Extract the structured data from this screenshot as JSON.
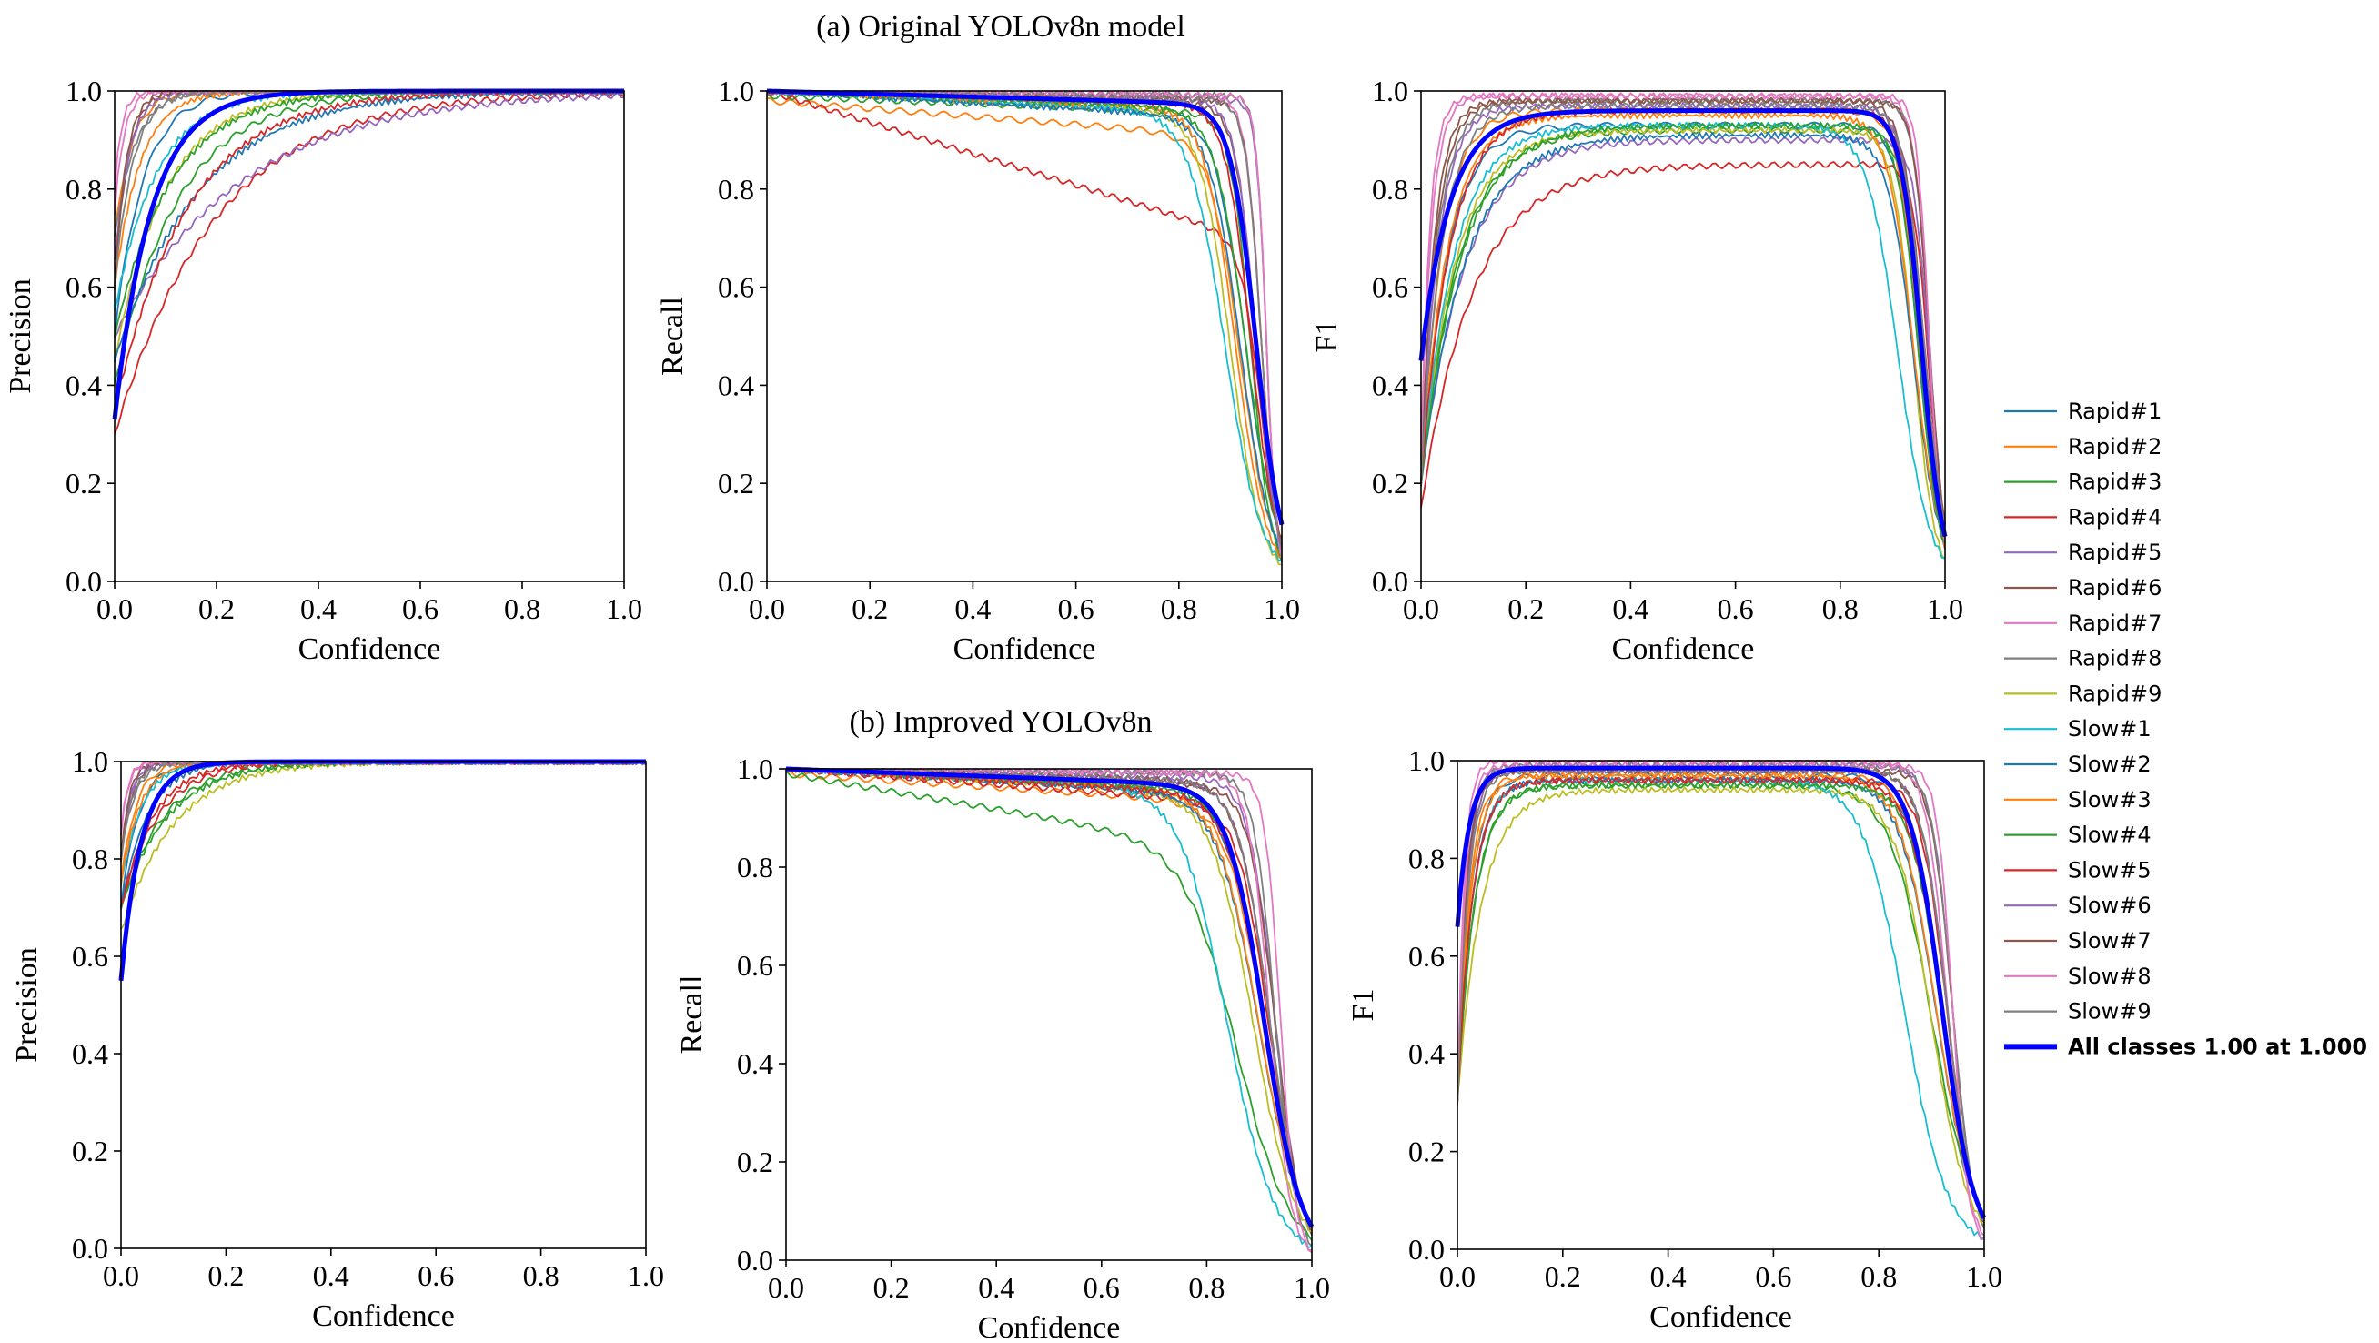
{
  "figure": {
    "top_title": "(a) Original YOLOv8n model",
    "bottom_title": "(b) Improved YOLOv8n"
  },
  "legend": [
    {
      "label": "Rapid#1",
      "color": "#1f77b4"
    },
    {
      "label": "Rapid#2",
      "color": "#ff7f0e"
    },
    {
      "label": "Rapid#3",
      "color": "#2ca02c"
    },
    {
      "label": "Rapid#4",
      "color": "#d62728"
    },
    {
      "label": "Rapid#5",
      "color": "#9467bd"
    },
    {
      "label": "Rapid#6",
      "color": "#8c564b"
    },
    {
      "label": "Rapid#7",
      "color": "#e377c2"
    },
    {
      "label": "Rapid#8",
      "color": "#7f7f7f"
    },
    {
      "label": "Rapid#9",
      "color": "#bcbd22"
    },
    {
      "label": "Slow#1",
      "color": "#17becf"
    },
    {
      "label": "Slow#2",
      "color": "#1f77b4"
    },
    {
      "label": "Slow#3",
      "color": "#ff7f0e"
    },
    {
      "label": "Slow#4",
      "color": "#2ca02c"
    },
    {
      "label": "Slow#5",
      "color": "#d62728"
    },
    {
      "label": "Slow#6",
      "color": "#9467bd"
    },
    {
      "label": "Slow#7",
      "color": "#8c564b"
    },
    {
      "label": "Slow#8",
      "color": "#e377c2"
    },
    {
      "label": "Slow#9",
      "color": "#7f7f7f"
    },
    {
      "label": "All  classes 1.00 at 1.000",
      "color": "#0000ff",
      "bold": true
    }
  ],
  "chart_data": [
    {
      "id": "a-precision",
      "type": "line",
      "row": "a",
      "kind": "precision",
      "xlabel": "Confidence",
      "ylabel": "Precision",
      "xlim": [
        0,
        1
      ],
      "ylim": [
        0,
        1
      ],
      "xticks": [
        "0.0",
        "0.2",
        "0.4",
        "0.6",
        "0.8",
        "1.0"
      ],
      "yticks": [
        "0.0",
        "0.2",
        "0.4",
        "0.6",
        "0.8",
        "1.0"
      ],
      "series": [
        {
          "name": "Rapid#1",
          "start": 0.5,
          "k": 18
        },
        {
          "name": "Rapid#2",
          "start": 0.7,
          "k": 30
        },
        {
          "name": "Rapid#3",
          "start": 0.4,
          "k": 8
        },
        {
          "name": "Rapid#4",
          "start": 0.3,
          "k": 5
        },
        {
          "name": "Rapid#5",
          "start": 0.5,
          "k": 4
        },
        {
          "name": "Rapid#6",
          "start": 0.6,
          "k": 40
        },
        {
          "name": "Rapid#7",
          "start": 0.8,
          "k": 70
        },
        {
          "name": "Rapid#8",
          "start": 0.7,
          "k": 25
        },
        {
          "name": "Rapid#9",
          "start": 0.45,
          "k": 10
        },
        {
          "name": "Slow#1",
          "start": 0.55,
          "k": 12
        },
        {
          "name": "Slow#2",
          "start": 0.45,
          "k": 6
        },
        {
          "name": "Slow#3",
          "start": 0.6,
          "k": 20
        },
        {
          "name": "Slow#4",
          "start": 0.5,
          "k": 9
        },
        {
          "name": "Slow#5",
          "start": 0.35,
          "k": 7
        },
        {
          "name": "Slow#6",
          "start": 0.65,
          "k": 35
        },
        {
          "name": "Slow#7",
          "start": 0.6,
          "k": 45
        },
        {
          "name": "Slow#8",
          "start": 0.75,
          "k": 55
        },
        {
          "name": "Slow#9",
          "start": 0.6,
          "k": 28
        },
        {
          "name": "All classes",
          "start": 0.33,
          "k": 14
        }
      ]
    },
    {
      "id": "a-recall",
      "type": "line",
      "row": "a",
      "kind": "recall",
      "xlabel": "Confidence",
      "ylabel": "Recall",
      "xlim": [
        0,
        1
      ],
      "ylim": [
        0,
        1
      ],
      "xticks": [
        "0.0",
        "0.2",
        "0.4",
        "0.6",
        "0.8",
        "1.0"
      ],
      "yticks": [
        "0.0",
        "0.2",
        "0.4",
        "0.6",
        "0.8",
        "1.0"
      ],
      "series": [
        {
          "name": "Rapid#1",
          "start": 1.0,
          "c": 0.93,
          "w": 0.03,
          "slope": 0.05
        },
        {
          "name": "Rapid#2",
          "start": 0.98,
          "c": 0.92,
          "w": 0.03,
          "slope": 0.08
        },
        {
          "name": "Rapid#3",
          "start": 0.99,
          "c": 0.94,
          "w": 0.02,
          "slope": 0.04
        },
        {
          "name": "Rapid#4",
          "start": 1.0,
          "c": 0.96,
          "w": 0.02,
          "slope": 0.32
        },
        {
          "name": "Rapid#5",
          "start": 1.0,
          "c": 0.97,
          "w": 0.01,
          "slope": 0.02
        },
        {
          "name": "Rapid#6",
          "start": 1.0,
          "c": 0.95,
          "w": 0.02,
          "slope": 0.03
        },
        {
          "name": "Rapid#7",
          "start": 1.0,
          "c": 0.96,
          "w": 0.015,
          "slope": 0.01
        },
        {
          "name": "Rapid#8",
          "start": 1.0,
          "c": 0.97,
          "w": 0.01,
          "slope": 0.01
        },
        {
          "name": "Rapid#9",
          "start": 1.0,
          "c": 0.9,
          "w": 0.03,
          "slope": 0.05
        },
        {
          "name": "Slow#1",
          "start": 1.0,
          "c": 0.89,
          "w": 0.035,
          "slope": 0.05
        },
        {
          "name": "Slow#2",
          "start": 1.0,
          "c": 0.92,
          "w": 0.03,
          "slope": 0.06
        },
        {
          "name": "Slow#3",
          "start": 1.0,
          "c": 0.91,
          "w": 0.03,
          "slope": 0.04
        },
        {
          "name": "Slow#4",
          "start": 1.0,
          "c": 0.93,
          "w": 0.03,
          "slope": 0.04
        },
        {
          "name": "Slow#5",
          "start": 1.0,
          "c": 0.94,
          "w": 0.025,
          "slope": 0.03
        },
        {
          "name": "Slow#6",
          "start": 1.0,
          "c": 0.95,
          "w": 0.02,
          "slope": 0.02
        },
        {
          "name": "Slow#7",
          "start": 1.0,
          "c": 0.96,
          "w": 0.015,
          "slope": 0.02
        },
        {
          "name": "Slow#8",
          "start": 1.0,
          "c": 0.97,
          "w": 0.01,
          "slope": 0.01
        },
        {
          "name": "Slow#9",
          "start": 1.0,
          "c": 0.96,
          "w": 0.015,
          "slope": 0.02
        },
        {
          "name": "All classes",
          "start": 1.0,
          "c": 0.95,
          "w": 0.025,
          "slope": 0.03
        }
      ]
    },
    {
      "id": "a-f1",
      "type": "line",
      "row": "a",
      "kind": "f1",
      "xlabel": "Confidence",
      "ylabel": "F1",
      "xlim": [
        0,
        1
      ],
      "ylim": [
        0,
        1
      ],
      "xticks": [
        "0.0",
        "0.2",
        "0.4",
        "0.6",
        "0.8",
        "1.0"
      ],
      "yticks": [
        "0.0",
        "0.2",
        "0.4",
        "0.6",
        "0.8",
        "1.0"
      ],
      "series": [
        {
          "name": "Rapid#1",
          "start": 0.2,
          "peak": 0.93,
          "k": 20,
          "c": 0.95,
          "w": 0.02
        },
        {
          "name": "Rapid#2",
          "start": 0.2,
          "peak": 0.96,
          "k": 25,
          "c": 0.95,
          "w": 0.02
        },
        {
          "name": "Rapid#3",
          "start": 0.2,
          "peak": 0.92,
          "k": 14,
          "c": 0.96,
          "w": 0.02
        },
        {
          "name": "Rapid#4",
          "start": 0.15,
          "peak": 0.85,
          "k": 10,
          "c": 0.97,
          "w": 0.015
        },
        {
          "name": "Rapid#5",
          "start": 0.2,
          "peak": 0.9,
          "k": 12,
          "c": 0.97,
          "w": 0.015
        },
        {
          "name": "Rapid#6",
          "start": 0.2,
          "peak": 0.98,
          "k": 35,
          "c": 0.96,
          "w": 0.02
        },
        {
          "name": "Rapid#7",
          "start": 0.25,
          "peak": 0.99,
          "k": 60,
          "c": 0.97,
          "w": 0.015
        },
        {
          "name": "Rapid#8",
          "start": 0.25,
          "peak": 0.98,
          "k": 30,
          "c": 0.97,
          "w": 0.015
        },
        {
          "name": "Rapid#9",
          "start": 0.2,
          "peak": 0.92,
          "k": 15,
          "c": 0.94,
          "w": 0.02
        },
        {
          "name": "Slow#1",
          "start": 0.2,
          "peak": 0.93,
          "k": 16,
          "c": 0.91,
          "w": 0.03
        },
        {
          "name": "Slow#2",
          "start": 0.2,
          "peak": 0.91,
          "k": 12,
          "c": 0.94,
          "w": 0.025
        },
        {
          "name": "Slow#3",
          "start": 0.2,
          "peak": 0.95,
          "k": 20,
          "c": 0.94,
          "w": 0.025
        },
        {
          "name": "Slow#4",
          "start": 0.2,
          "peak": 0.93,
          "k": 13,
          "c": 0.95,
          "w": 0.02
        },
        {
          "name": "Slow#5",
          "start": 0.2,
          "peak": 0.96,
          "k": 18,
          "c": 0.96,
          "w": 0.02
        },
        {
          "name": "Slow#6",
          "start": 0.2,
          "peak": 0.97,
          "k": 30,
          "c": 0.96,
          "w": 0.02
        },
        {
          "name": "Slow#7",
          "start": 0.2,
          "peak": 0.98,
          "k": 40,
          "c": 0.97,
          "w": 0.015
        },
        {
          "name": "Slow#8",
          "start": 0.25,
          "peak": 0.99,
          "k": 50,
          "c": 0.97,
          "w": 0.012
        },
        {
          "name": "Slow#9",
          "start": 0.2,
          "peak": 0.97,
          "k": 25,
          "c": 0.96,
          "w": 0.02
        },
        {
          "name": "All classes",
          "start": 0.45,
          "peak": 0.96,
          "k": 18,
          "c": 0.955,
          "w": 0.02
        }
      ]
    },
    {
      "id": "b-precision",
      "type": "line",
      "row": "b",
      "kind": "precision",
      "xlabel": "Confidence",
      "ylabel": "Precision",
      "xlim": [
        0,
        1
      ],
      "ylim": [
        0,
        1
      ],
      "xticks": [
        "0.0",
        "0.2",
        "0.4",
        "0.6",
        "0.8",
        "1.0"
      ],
      "yticks": [
        "0.0",
        "0.2",
        "0.4",
        "0.6",
        "0.8",
        "1.0"
      ],
      "series": [
        {
          "name": "Rapid#1",
          "start": 0.7,
          "k": 30
        },
        {
          "name": "Rapid#2",
          "start": 0.75,
          "k": 35
        },
        {
          "name": "Rapid#3",
          "start": 0.7,
          "k": 12
        },
        {
          "name": "Rapid#4",
          "start": 0.7,
          "k": 14
        },
        {
          "name": "Rapid#5",
          "start": 0.8,
          "k": 60
        },
        {
          "name": "Rapid#6",
          "start": 0.8,
          "k": 50
        },
        {
          "name": "Rapid#7",
          "start": 0.85,
          "k": 80
        },
        {
          "name": "Rapid#8",
          "start": 0.8,
          "k": 45
        },
        {
          "name": "Rapid#9",
          "start": 0.65,
          "k": 10
        },
        {
          "name": "Slow#1",
          "start": 0.75,
          "k": 25
        },
        {
          "name": "Slow#2",
          "start": 0.7,
          "k": 20
        },
        {
          "name": "Slow#3",
          "start": 0.75,
          "k": 28
        },
        {
          "name": "Slow#4",
          "start": 0.7,
          "k": 11
        },
        {
          "name": "Slow#5",
          "start": 0.7,
          "k": 16
        },
        {
          "name": "Slow#6",
          "start": 0.8,
          "k": 55
        },
        {
          "name": "Slow#7",
          "start": 0.8,
          "k": 65
        },
        {
          "name": "Slow#8",
          "start": 0.85,
          "k": 75
        },
        {
          "name": "Slow#9",
          "start": 0.8,
          "k": 40
        },
        {
          "name": "All classes",
          "start": 0.55,
          "k": 26
        }
      ]
    },
    {
      "id": "b-recall",
      "type": "line",
      "row": "b",
      "kind": "recall",
      "xlabel": "Confidence",
      "ylabel": "Recall",
      "xlim": [
        0,
        1
      ],
      "ylim": [
        0,
        1
      ],
      "xticks": [
        "0.0",
        "0.2",
        "0.4",
        "0.6",
        "0.8",
        "1.0"
      ],
      "yticks": [
        "0.0",
        "0.2",
        "0.4",
        "0.6",
        "0.8",
        "1.0"
      ],
      "series": [
        {
          "name": "Rapid#1",
          "start": 1.0,
          "c": 0.91,
          "w": 0.035,
          "slope": 0.06
        },
        {
          "name": "Rapid#2",
          "start": 0.99,
          "c": 0.91,
          "w": 0.035,
          "slope": 0.07
        },
        {
          "name": "Rapid#3",
          "start": 0.99,
          "c": 0.86,
          "w": 0.05,
          "slope": 0.18
        },
        {
          "name": "Rapid#4",
          "start": 1.0,
          "c": 0.92,
          "w": 0.03,
          "slope": 0.08
        },
        {
          "name": "Rapid#5",
          "start": 1.0,
          "c": 0.93,
          "w": 0.025,
          "slope": 0.02
        },
        {
          "name": "Rapid#6",
          "start": 1.0,
          "c": 0.93,
          "w": 0.025,
          "slope": 0.04
        },
        {
          "name": "Rapid#7",
          "start": 1.0,
          "c": 0.92,
          "w": 0.02,
          "slope": 0.01
        },
        {
          "name": "Rapid#8",
          "start": 1.0,
          "c": 0.93,
          "w": 0.02,
          "slope": 0.01
        },
        {
          "name": "Rapid#9",
          "start": 1.0,
          "c": 0.89,
          "w": 0.04,
          "slope": 0.06
        },
        {
          "name": "Slow#1",
          "start": 1.0,
          "c": 0.84,
          "w": 0.045,
          "slope": 0.05
        },
        {
          "name": "Slow#2",
          "start": 1.0,
          "c": 0.9,
          "w": 0.04,
          "slope": 0.06
        },
        {
          "name": "Slow#3",
          "start": 1.0,
          "c": 0.9,
          "w": 0.04,
          "slope": 0.05
        },
        {
          "name": "Slow#4",
          "start": 1.0,
          "c": 0.91,
          "w": 0.035,
          "slope": 0.05
        },
        {
          "name": "Slow#5",
          "start": 1.0,
          "c": 0.91,
          "w": 0.035,
          "slope": 0.06
        },
        {
          "name": "Slow#6",
          "start": 1.0,
          "c": 0.92,
          "w": 0.03,
          "slope": 0.03
        },
        {
          "name": "Slow#7",
          "start": 1.0,
          "c": 0.92,
          "w": 0.03,
          "slope": 0.03
        },
        {
          "name": "Slow#8",
          "start": 1.0,
          "c": 0.94,
          "w": 0.015,
          "slope": 0.01
        },
        {
          "name": "Slow#9",
          "start": 1.0,
          "c": 0.92,
          "w": 0.03,
          "slope": 0.03
        },
        {
          "name": "All classes",
          "start": 1.0,
          "c": 0.91,
          "w": 0.035,
          "slope": 0.04
        }
      ]
    },
    {
      "id": "b-f1",
      "type": "line",
      "row": "b",
      "kind": "f1",
      "xlabel": "Confidence",
      "ylabel": "F1",
      "xlim": [
        0,
        1
      ],
      "ylim": [
        0,
        1
      ],
      "xticks": [
        "0.0",
        "0.2",
        "0.4",
        "0.6",
        "0.8",
        "1.0"
      ],
      "yticks": [
        "0.0",
        "0.2",
        "0.4",
        "0.6",
        "0.8",
        "1.0"
      ],
      "series": [
        {
          "name": "Rapid#1",
          "start": 0.3,
          "peak": 0.97,
          "k": 40,
          "c": 0.92,
          "w": 0.03
        },
        {
          "name": "Rapid#2",
          "start": 0.3,
          "peak": 0.97,
          "k": 45,
          "c": 0.92,
          "w": 0.03
        },
        {
          "name": "Rapid#3",
          "start": 0.3,
          "peak": 0.95,
          "k": 30,
          "c": 0.9,
          "w": 0.04
        },
        {
          "name": "Rapid#4",
          "start": 0.3,
          "peak": 0.96,
          "k": 35,
          "c": 0.93,
          "w": 0.025
        },
        {
          "name": "Rapid#5",
          "start": 0.3,
          "peak": 0.99,
          "k": 60,
          "c": 0.94,
          "w": 0.02
        },
        {
          "name": "Rapid#6",
          "start": 0.3,
          "peak": 0.98,
          "k": 55,
          "c": 0.94,
          "w": 0.02
        },
        {
          "name": "Rapid#7",
          "start": 0.3,
          "peak": 1.0,
          "k": 80,
          "c": 0.93,
          "w": 0.02
        },
        {
          "name": "Rapid#8",
          "start": 0.3,
          "peak": 0.99,
          "k": 60,
          "c": 0.94,
          "w": 0.02
        },
        {
          "name": "Rapid#9",
          "start": 0.3,
          "peak": 0.94,
          "k": 22,
          "c": 0.9,
          "w": 0.035
        },
        {
          "name": "Slow#1",
          "start": 0.3,
          "peak": 0.96,
          "k": 35,
          "c": 0.85,
          "w": 0.04
        },
        {
          "name": "Slow#2",
          "start": 0.3,
          "peak": 0.96,
          "k": 35,
          "c": 0.91,
          "w": 0.035
        },
        {
          "name": "Slow#3",
          "start": 0.3,
          "peak": 0.97,
          "k": 40,
          "c": 0.91,
          "w": 0.035
        },
        {
          "name": "Slow#4",
          "start": 0.3,
          "peak": 0.95,
          "k": 30,
          "c": 0.92,
          "w": 0.03
        },
        {
          "name": "Slow#5",
          "start": 0.3,
          "peak": 0.96,
          "k": 35,
          "c": 0.92,
          "w": 0.03
        },
        {
          "name": "Slow#6",
          "start": 0.3,
          "peak": 0.98,
          "k": 55,
          "c": 0.93,
          "w": 0.025
        },
        {
          "name": "Slow#7",
          "start": 0.3,
          "peak": 0.98,
          "k": 60,
          "c": 0.93,
          "w": 0.025
        },
        {
          "name": "Slow#8",
          "start": 0.3,
          "peak": 0.99,
          "k": 70,
          "c": 0.94,
          "w": 0.015
        },
        {
          "name": "Slow#9",
          "start": 0.3,
          "peak": 0.98,
          "k": 50,
          "c": 0.93,
          "w": 0.025
        },
        {
          "name": "All classes",
          "start": 0.66,
          "peak": 0.985,
          "k": 45,
          "c": 0.92,
          "w": 0.03
        }
      ]
    }
  ]
}
